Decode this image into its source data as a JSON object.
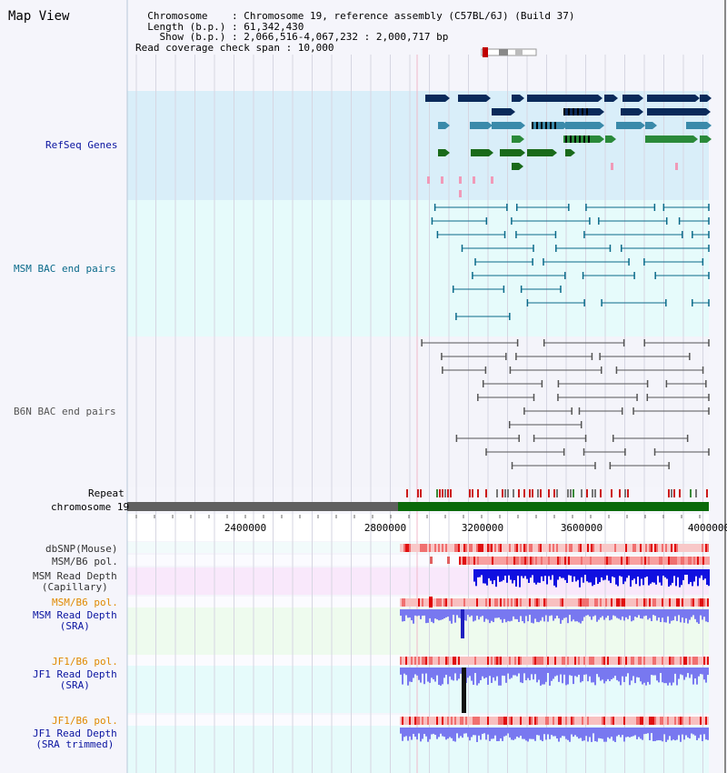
{
  "title": "Map View",
  "info": {
    "lines": [
      "  Chromosome    : Chromosome 19, reference assembly (C57BL/6J) (Build 37)",
      "  Length (b.p.) : 61,342,430",
      "    Show (b.p.) : 2,066,516-4,067,232 : 2,000,717 bp",
      "Read coverage check span : 10,000"
    ]
  },
  "tracks": {
    "refseq": "RefSeq Genes",
    "msm_bac": "MSM BAC end pairs",
    "b6n_bac": "B6N BAC end pairs",
    "repeat": "Repeat",
    "chromosome": "chromosome 19",
    "dbsnp": "dbSNP(Mouse)",
    "msm_pol1": "MSM/B6 pol.",
    "msm_depth_cap_1": "MSM Read Depth",
    "msm_depth_cap_2": "(Capillary)",
    "msm_pol2": "MSM/B6 pol.",
    "msm_depth_sra_1": "MSM Read Depth",
    "msm_depth_sra_2": "(SRA)",
    "jf1_pol1": "JF1/B6 pol.",
    "jf1_depth_1": "JF1 Read Depth",
    "jf1_depth_2": "(SRA)",
    "jf1_pol2": "JF1/B6 pol.",
    "jf1_depth_trim_1": "JF1 Read Depth",
    "jf1_depth_trim_2": "(SRA trimmed)"
  },
  "axis": {
    "ticks": [
      "2400000",
      "2800000",
      "3200000",
      "3600000",
      "4000000"
    ]
  },
  "colors": {
    "refseq_bg": "#d9eef9",
    "bac_bg": "#e6fbfb",
    "b6n_bg": "#f4f4fa",
    "depth_cap_bg": "#f9e8fb",
    "msm_sra_bg": "#eefbee",
    "jf1_bg": "#e6fbfb",
    "label_blue": "#0a14a0",
    "label_teal": "#0a6a8a",
    "label_orange": "#e08a00",
    "label_gray": "#555555"
  }
}
